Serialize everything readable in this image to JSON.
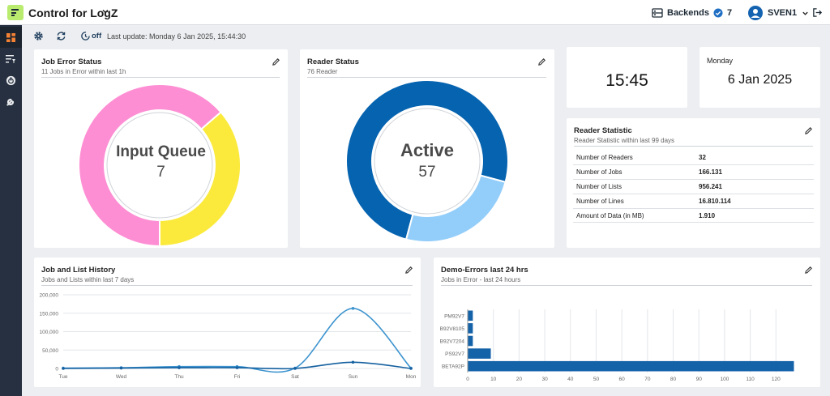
{
  "header": {
    "app_title": "Control for LogZ",
    "backends_label": "Backends",
    "backends_count": "7",
    "user_name": "SVEN1"
  },
  "sidebar": {
    "items": [
      {
        "name": "dashboard-icon",
        "active": true
      },
      {
        "name": "filter-list-icon",
        "active": false
      },
      {
        "name": "power-icon",
        "active": false
      },
      {
        "name": "wrench-icon",
        "active": false
      }
    ]
  },
  "toolbar": {
    "autorefresh_state": "off",
    "last_update": "Last update: Monday 6 Jan 2025, 15:44:30"
  },
  "job_error_status": {
    "title": "Job Error Status",
    "subtitle": "11 Jobs in Error within last 1h",
    "center_label": "Input Queue",
    "center_value": "7",
    "slices": [
      {
        "value": 7,
        "color": "#fe8ed3"
      },
      {
        "value": 4,
        "color": "#fbea3c"
      }
    ]
  },
  "reader_status": {
    "title": "Reader Status",
    "subtitle": "76 Reader",
    "center_label": "Active",
    "center_value": "57",
    "slices": [
      {
        "value": 57,
        "color": "#0563b0"
      },
      {
        "value": 19,
        "color": "#93cdf9"
      }
    ]
  },
  "clock": {
    "time": "15:45"
  },
  "date_card": {
    "weekday": "Monday",
    "date": "6 Jan 2025"
  },
  "reader_statistic": {
    "title": "Reader Statistic",
    "subtitle": "Reader Statistic within last 99 days",
    "rows": [
      {
        "label": "Number of Readers",
        "value": "32"
      },
      {
        "label": "Number of Jobs",
        "value": "166.131"
      },
      {
        "label": "Number of Lists",
        "value": "956.241"
      },
      {
        "label": "Number of Lines",
        "value": "16.810.114"
      },
      {
        "label": "Amount of Data (in MB)",
        "value": "1.910"
      }
    ]
  },
  "job_list_history": {
    "title": "Job and List History",
    "subtitle": "Jobs and Lists within last 7 days"
  },
  "demo_errors": {
    "title": "Demo-Errors last 24 hrs",
    "subtitle": "Jobs in Error - last 24 hours"
  },
  "chart_data": [
    {
      "type": "line",
      "categories": [
        "Tue",
        "Wed",
        "Thu",
        "Fri",
        "Sat",
        "Sun",
        "Mon"
      ],
      "ylim": [
        0,
        200000
      ],
      "yticks": [
        0,
        50000,
        100000,
        150000,
        200000
      ],
      "ytick_labels": [
        "0",
        "50,000",
        "100,000",
        "150,000",
        "200,000"
      ],
      "series": [
        {
          "color": "#3d94cf",
          "values": [
            1000,
            2000,
            5000,
            5000,
            1000,
            163000,
            1000
          ]
        },
        {
          "color": "#1460a0",
          "values": [
            0,
            1000,
            2000,
            2000,
            0,
            17000,
            0
          ]
        }
      ]
    },
    {
      "type": "bar",
      "orientation": "horizontal",
      "categories": [
        "PM92V7",
        "B92V8105",
        "B92V7204",
        "PS92V7",
        "BETA92P"
      ],
      "values": [
        2,
        2,
        2,
        9,
        127
      ],
      "xlim": [
        0,
        130
      ],
      "xticks": [
        0,
        10,
        20,
        30,
        40,
        50,
        60,
        70,
        80,
        90,
        100,
        110,
        120
      ],
      "color": "#1462a8"
    }
  ]
}
